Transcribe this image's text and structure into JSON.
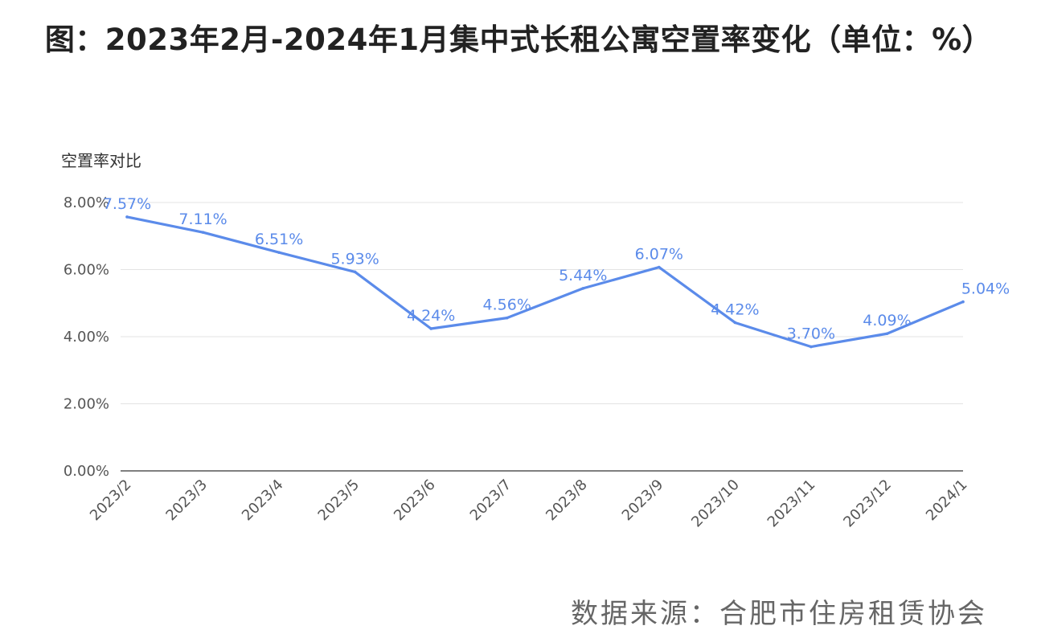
{
  "chart_data": {
    "type": "line",
    "title": "图：2023年2月-2024年1月集中式长租公寓空置率变化（单位：%）",
    "ylabel": "空置率对比",
    "categories": [
      "2023/2",
      "2023/3",
      "2023/4",
      "2023/5",
      "2023/6",
      "2023/7",
      "2023/8",
      "2023/9",
      "2023/10",
      "2023/11",
      "2023/12",
      "2024/1"
    ],
    "series": [
      {
        "values": [
          7.57,
          7.11,
          6.51,
          5.93,
          4.24,
          4.56,
          5.44,
          6.07,
          4.42,
          3.7,
          4.09,
          5.04
        ],
        "labels": [
          "7.57%",
          "7.11%",
          "6.51%",
          "5.93%",
          "4.24%",
          "4.56%",
          "5.44%",
          "6.07%",
          "4.42%",
          "3.70%",
          "4.09%",
          "5.04%"
        ]
      }
    ],
    "y_ticks": [
      "0.00%",
      "2.00%",
      "4.00%",
      "6.00%",
      "8.00%"
    ],
    "y_tick_values": [
      0,
      2,
      4,
      6,
      8
    ],
    "ylim": [
      0,
      8
    ],
    "grid": true,
    "line_color": "#5b8bea",
    "source": "数据来源：合肥市住房租赁协会"
  }
}
